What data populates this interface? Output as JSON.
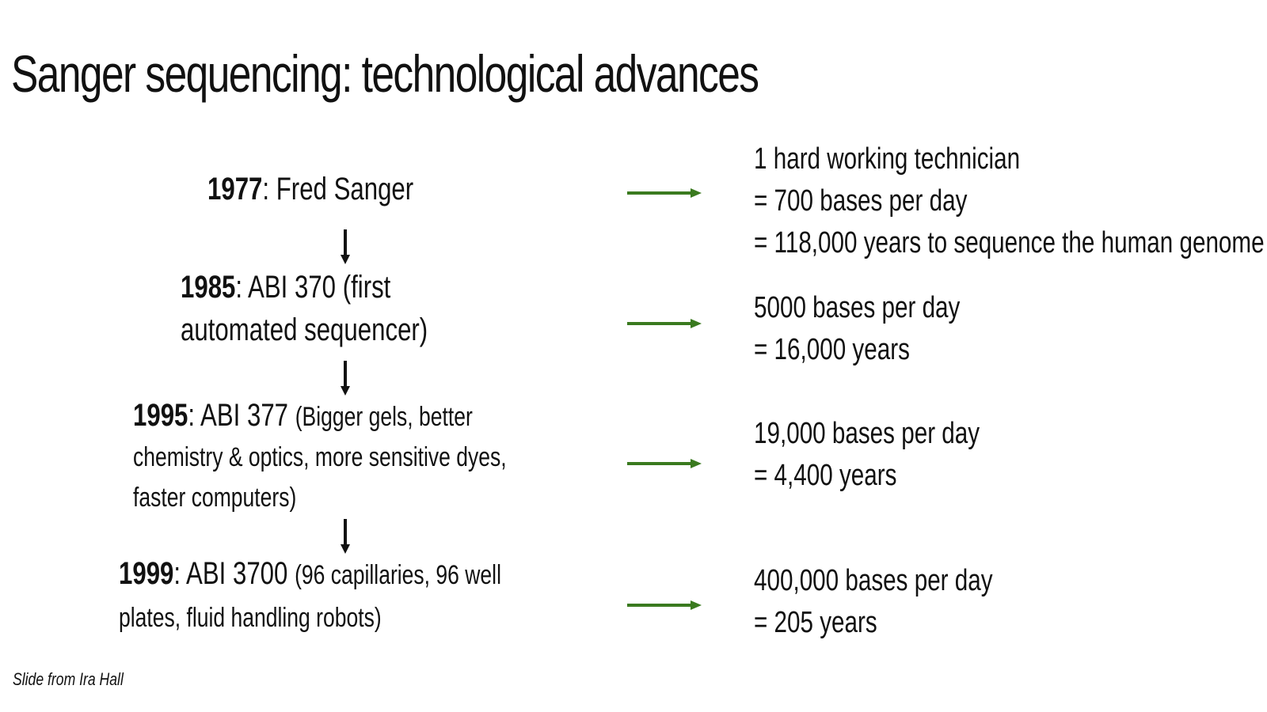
{
  "slide": {
    "title": "Sanger sequencing: technological advances",
    "credit": "Slide from Ira Hall",
    "accent_color": "#3a7a1f",
    "icons": {
      "down_arrow": "arrow-down-icon",
      "right_arrow": "arrow-right-icon"
    }
  },
  "timeline": [
    {
      "year": "1977",
      "name": ": Fred Sanger",
      "detail": "",
      "line2": ""
    },
    {
      "year": "1985",
      "name": ": ABI 370 (first",
      "detail": "",
      "line2": "automated sequencer)"
    },
    {
      "year": "1995",
      "name": ": ABI 377",
      "detail": "(Bigger gels, better",
      "line2": "chemistry & optics, more sensitive dyes,",
      "line3": "faster computers)"
    },
    {
      "year": "1999",
      "name": ": ABI 3700",
      "detail": "(96 capillaries, 96 well",
      "line2": "plates, fluid handling robots)"
    }
  ],
  "results": [
    [
      "1 hard working technician",
      "= 700 bases per day",
      "= 118,000 years to sequence the human genome"
    ],
    [
      "5000 bases per day",
      "= 16,000 years"
    ],
    [
      "19,000 bases per day",
      "= 4,400 years"
    ],
    [
      "400,000 bases per day",
      "= 205 years"
    ]
  ]
}
